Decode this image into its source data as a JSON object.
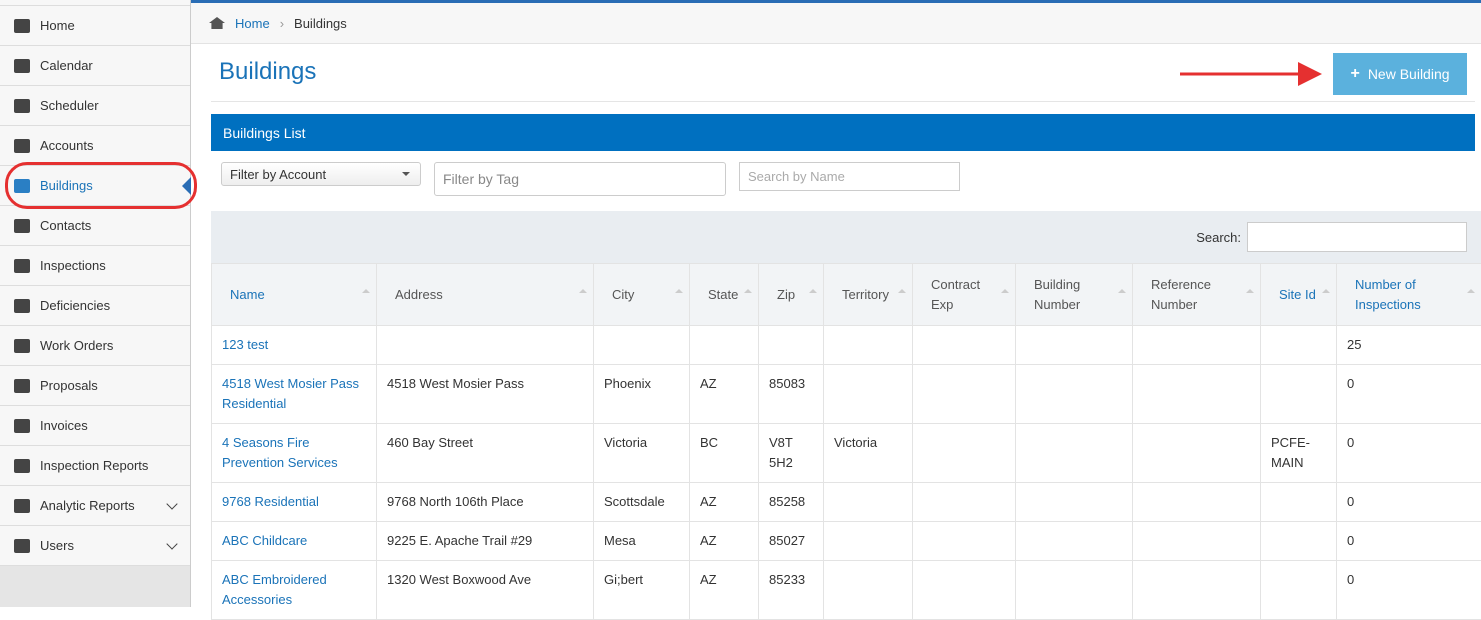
{
  "sidebar": {
    "items": [
      "Home",
      "Calendar",
      "Scheduler",
      "Accounts",
      "Buildings",
      "Contacts",
      "Inspections",
      "Deficiencies",
      "Work Orders",
      "Proposals",
      "Invoices",
      "Inspection Reports",
      "Analytic Reports",
      "Users"
    ],
    "active": "Buildings"
  },
  "breadcrumb": [
    "Home",
    "Buildings"
  ],
  "header": {
    "title": "Buildings",
    "button": "New Building"
  },
  "panel": {
    "title": "Buildings List",
    "filter_account": "Filter by Account",
    "filter_tag": "Filter by Tag",
    "search_name": "Search by Name",
    "search_label": "Search:"
  },
  "table": {
    "columns": [
      "Name",
      "Address",
      "City",
      "State",
      "Zip",
      "Territory",
      "Contract Exp",
      "Building Number",
      "Reference Number",
      "Site Id",
      "Number of Inspections"
    ],
    "rows": [
      [
        "123 test",
        null,
        null,
        null,
        null,
        null,
        null,
        null,
        null,
        null,
        "25"
      ],
      [
        "4518 West Mosier Pass Residential",
        "4518 West Mosier Pass",
        "Phoenix",
        "AZ",
        "85083",
        null,
        null,
        null,
        null,
        null,
        "0"
      ],
      [
        "4 Seasons Fire Prevention Services",
        "460 Bay Street",
        "Victoria",
        "BC",
        "V8T 5H2",
        "Victoria",
        null,
        null,
        null,
        "PCFE-MAIN",
        "0"
      ],
      [
        "9768 Residential",
        "9768 North 106th Place",
        "Scottsdale",
        "AZ",
        "85258",
        null,
        null,
        null,
        null,
        null,
        "0"
      ],
      [
        "ABC Childcare",
        "9225 E. Apache Trail #29",
        "Mesa",
        "AZ",
        "85027",
        null,
        null,
        null,
        null,
        null,
        "0"
      ],
      [
        "ABC Embroidered Accessories",
        "1320 West Boxwood Ave",
        "Gi;bert",
        "AZ",
        "85233",
        null,
        null,
        null,
        null,
        null,
        "0"
      ]
    ]
  }
}
